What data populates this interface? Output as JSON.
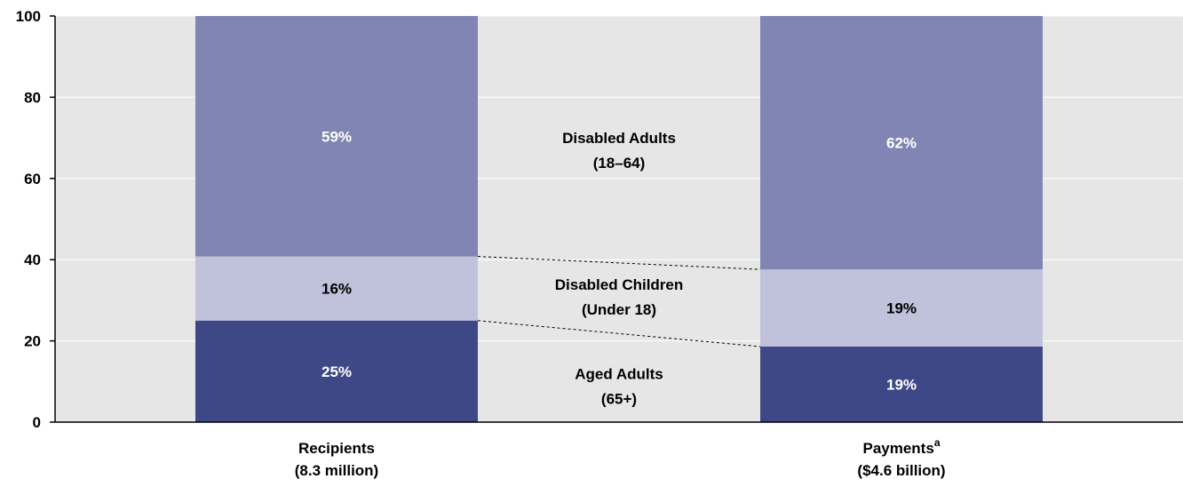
{
  "chart_data": {
    "type": "bar",
    "stacked": true,
    "ylim": [
      0,
      100
    ],
    "yticks": [
      0,
      20,
      40,
      60,
      80,
      100
    ],
    "grid": true,
    "categories": [
      {
        "line1": "Recipients",
        "sup": "",
        "line2": "(8.3 million)"
      },
      {
        "line1": "Payments",
        "sup": "a",
        "line2": "($4.6 billion)"
      }
    ],
    "series": [
      {
        "name": "Aged Adults (65+)",
        "label_lines": [
          "Aged Adults",
          "(65+)"
        ],
        "values": [
          25,
          18.6
        ],
        "value_labels": [
          "25%",
          "19%"
        ],
        "color": "#3f4887",
        "text_color": "#ffffff"
      },
      {
        "name": "Disabled Children (Under 18)",
        "label_lines": [
          "Disabled Children",
          "(Under 18)"
        ],
        "values": [
          15.8,
          19
        ],
        "value_labels": [
          "16%",
          "19%"
        ],
        "color": "#c0c1da",
        "text_color": "#000000"
      },
      {
        "name": "Disabled Adults (18–64)",
        "label_lines": [
          "Disabled Adults",
          "(18–64)"
        ],
        "values": [
          59.2,
          62.4
        ],
        "value_labels": [
          "59%",
          "62%"
        ],
        "color": "#8085b3",
        "text_color": "#ffffff"
      }
    ],
    "colors": {
      "plot_background": "#e6e6e6",
      "gridline": "#ffffff",
      "axis": "#000000",
      "connector": "#000000"
    }
  }
}
